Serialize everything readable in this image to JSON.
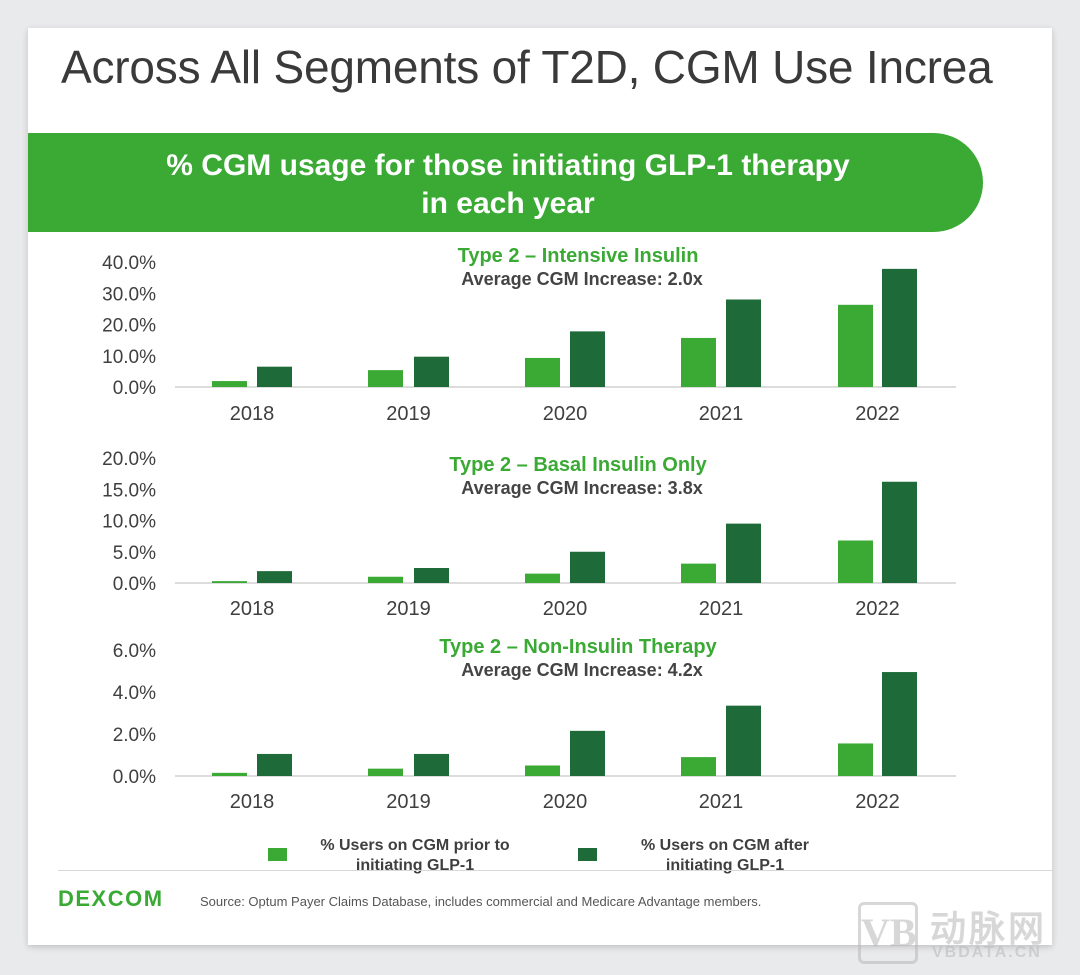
{
  "slide": {
    "title": "Across All Segments of T2D, CGM Use Increa",
    "banner_lines": [
      "% CGM usage for those initiating GLP-1 therapy",
      "in each year"
    ]
  },
  "colors": {
    "prior": "#3aaa35",
    "after": "#1e6b39",
    "axis": "#d0d0d0",
    "brand_green": "#3aaa35"
  },
  "chart_data": [
    {
      "type": "bar",
      "title": "Type 2 – Intensive Insulin",
      "subtitle": "Average CGM Increase: 2.0x",
      "categories": [
        "2018",
        "2019",
        "2020",
        "2021",
        "2022"
      ],
      "series": [
        {
          "name": "% Users on CGM prior to initiating GLP-1",
          "values": [
            1.9,
            5.4,
            9.3,
            15.7,
            26.3
          ]
        },
        {
          "name": "% Users on CGM after initiating GLP-1",
          "values": [
            6.5,
            9.7,
            17.8,
            28.0,
            37.8
          ]
        }
      ],
      "ylim": [
        0,
        40
      ],
      "yticks": [
        0,
        10,
        20,
        30,
        40
      ],
      "ytick_labels": [
        "0.0%",
        "10.0%",
        "20.0%",
        "30.0%",
        "40.0%"
      ]
    },
    {
      "type": "bar",
      "title": "Type 2 – Basal Insulin Only",
      "subtitle": "Average CGM Increase: 3.8x",
      "categories": [
        "2018",
        "2019",
        "2020",
        "2021",
        "2022"
      ],
      "series": [
        {
          "name": "% Users on CGM prior to initiating GLP-1",
          "values": [
            0.3,
            1.0,
            1.5,
            3.1,
            6.8
          ]
        },
        {
          "name": "% Users on CGM after initiating GLP-1",
          "values": [
            1.9,
            2.4,
            5.0,
            9.5,
            16.2
          ]
        }
      ],
      "ylim": [
        0,
        20
      ],
      "yticks": [
        0,
        5,
        10,
        15,
        20
      ],
      "ytick_labels": [
        "0.0%",
        "5.0%",
        "10.0%",
        "15.0%",
        "20.0%"
      ]
    },
    {
      "type": "bar",
      "title": "Type 2 – Non-Insulin Therapy",
      "subtitle": "Average CGM Increase: 4.2x",
      "categories": [
        "2018",
        "2019",
        "2020",
        "2021",
        "2022"
      ],
      "series": [
        {
          "name": "% Users on CGM prior to initiating GLP-1",
          "values": [
            0.15,
            0.35,
            0.5,
            0.9,
            1.55
          ]
        },
        {
          "name": "% Users on CGM after initiating GLP-1",
          "values": [
            1.05,
            1.05,
            2.15,
            3.35,
            4.95
          ]
        }
      ],
      "ylim": [
        0,
        6
      ],
      "yticks": [
        0,
        2,
        4,
        6
      ],
      "ytick_labels": [
        "0.0%",
        "2.0%",
        "4.0%",
        "6.0%"
      ]
    }
  ],
  "legend": {
    "prior_lines": [
      "% Users on CGM prior to",
      "initiating GLP-1"
    ],
    "after_lines": [
      "% Users on CGM after",
      "initiating GLP-1"
    ]
  },
  "footer": {
    "logo": "DEXCOM",
    "source": "Source: Optum Payer Claims Database, includes commercial and Medicare Advantage members."
  },
  "watermark": {
    "cn": "动脉网",
    "en": "VBDATA.CN",
    "mark": "VB"
  }
}
